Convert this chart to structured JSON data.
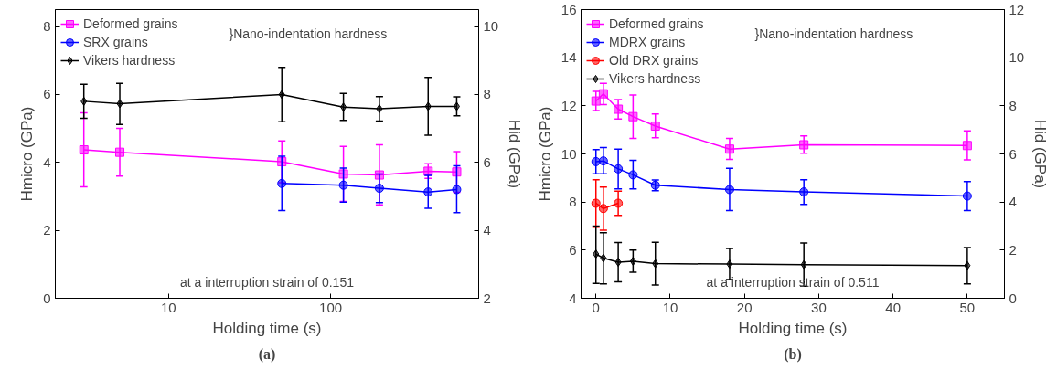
{
  "chart_data": [
    {
      "type": "line",
      "xlabel": "Holding time (s)",
      "ylabel": "Hmicro (GPa)",
      "y2label": "Hid (GPa)",
      "log": "x",
      "xlim": [
        2,
        820
      ],
      "xticks": [
        10,
        100
      ],
      "ylim": [
        0,
        8.5
      ],
      "yticks": [
        0,
        2,
        4,
        6,
        8
      ],
      "y2lim": [
        2,
        10.5
      ],
      "y2ticks": [
        2,
        4,
        6,
        8,
        10
      ],
      "grid": false,
      "legend": "top left",
      "line_style": "solid",
      "annotations": [
        "}Nano-indentation hardness",
        "at a interruption strain of 0.151",
        "(a)"
      ],
      "series": [
        {
          "name": "Deformed grains",
          "color": "#ff00ff",
          "marker": "square",
          "axis": "y2",
          "x": [
            3,
            5,
            50,
            120,
            200,
            400,
            600
          ],
          "values": [
            6.37,
            6.3,
            6.02,
            5.66,
            5.63,
            5.74,
            5.72
          ],
          "errors": [
            [
              5.28,
              7.46
            ],
            [
              5.6,
              7.0
            ],
            [
              5.4,
              6.63
            ],
            [
              4.85,
              6.47
            ],
            [
              4.75,
              6.52
            ],
            [
              5.53,
              5.96
            ],
            [
              5.12,
              6.32
            ]
          ]
        },
        {
          "name": "SRX grains",
          "color": "#0000ff",
          "marker": "circle",
          "axis": "y2",
          "x": [
            50,
            120,
            200,
            400,
            600
          ],
          "values": [
            5.38,
            5.33,
            5.24,
            5.13,
            5.2
          ],
          "errors": [
            [
              4.58,
              6.18
            ],
            [
              4.83,
              5.83
            ],
            [
              4.82,
              5.66
            ],
            [
              4.65,
              5.62
            ],
            [
              4.52,
              5.9
            ]
          ]
        },
        {
          "name": "Vikers hardness",
          "color": "#000000",
          "marker": "diamond",
          "x": [
            3,
            5,
            50,
            120,
            200,
            400,
            600
          ],
          "values": [
            5.8,
            5.73,
            6.0,
            5.63,
            5.58,
            5.65,
            5.65
          ],
          "errors": [
            [
              5.3,
              6.3
            ],
            [
              5.12,
              6.33
            ],
            [
              5.2,
              6.8
            ],
            [
              5.24,
              6.03
            ],
            [
              5.22,
              5.94
            ],
            [
              4.8,
              6.5
            ],
            [
              5.37,
              5.93
            ]
          ]
        }
      ]
    },
    {
      "type": "line",
      "xlabel": "Holding time (s)",
      "ylabel": "Hmicro (GPa)",
      "y2label": "Hid (GPa)",
      "xlim": [
        -2,
        55
      ],
      "xticks": [
        0,
        10,
        20,
        30,
        40,
        50
      ],
      "ylim": [
        4,
        16
      ],
      "yticks": [
        4,
        6,
        8,
        10,
        12,
        14,
        16
      ],
      "y2lim": [
        0,
        12
      ],
      "y2ticks": [
        0,
        2,
        4,
        6,
        8,
        10,
        12
      ],
      "grid": false,
      "legend": "top left",
      "line_style": "solid",
      "annotations": [
        "}Nano-indentation hardness",
        "at a interruption strain of 0.511",
        "(b)"
      ],
      "series": [
        {
          "name": "Deformed grains",
          "color": "#ff00ff",
          "marker": "square",
          "axis": "y2",
          "x": [
            0,
            1,
            3,
            5,
            8,
            18,
            28,
            50
          ],
          "values": [
            8.2,
            8.5,
            7.86,
            7.55,
            7.16,
            6.2,
            6.38,
            6.35
          ],
          "errors": [
            [
              7.8,
              8.6
            ],
            [
              8.05,
              8.93
            ],
            [
              7.45,
              8.26
            ],
            [
              6.65,
              8.45
            ],
            [
              6.67,
              7.66
            ],
            [
              5.77,
              6.65
            ],
            [
              6.03,
              6.75
            ],
            [
              5.75,
              6.96
            ]
          ]
        },
        {
          "name": "MDRX grains",
          "color": "#0000ff",
          "marker": "circle",
          "axis": "y2",
          "x": [
            0,
            1,
            3,
            5,
            8,
            18,
            28,
            50
          ],
          "values": [
            5.68,
            5.71,
            5.38,
            5.13,
            4.7,
            4.52,
            4.42,
            4.25
          ],
          "errors": [
            [
              5.17,
              6.18
            ],
            [
              5.17,
              6.27
            ],
            [
              4.55,
              6.2
            ],
            [
              4.55,
              5.73
            ],
            [
              4.47,
              4.92
            ],
            [
              3.65,
              5.4
            ],
            [
              3.9,
              4.93
            ],
            [
              3.65,
              4.85
            ]
          ]
        },
        {
          "name": "Old DRX grains",
          "color": "#ff0000",
          "marker": "circle",
          "axis": "y2",
          "x": [
            0,
            1,
            3
          ],
          "values": [
            3.95,
            3.73,
            3.95
          ],
          "errors": [
            [
              2.95,
              4.93
            ],
            [
              2.83,
              4.62
            ],
            [
              3.45,
              4.45
            ]
          ]
        },
        {
          "name": "Vikers hardness",
          "color": "#000000",
          "marker": "diamond",
          "x": [
            0,
            1,
            3,
            5,
            8,
            18,
            28,
            50
          ],
          "values": [
            5.84,
            5.67,
            5.5,
            5.54,
            5.44,
            5.42,
            5.4,
            5.36
          ],
          "errors": [
            [
              4.62,
              7.0
            ],
            [
              4.6,
              6.72
            ],
            [
              4.68,
              6.32
            ],
            [
              5.08,
              6.0
            ],
            [
              4.55,
              6.33
            ],
            [
              4.78,
              6.07
            ],
            [
              4.5,
              6.3
            ],
            [
              4.6,
              6.11
            ]
          ]
        }
      ]
    }
  ]
}
